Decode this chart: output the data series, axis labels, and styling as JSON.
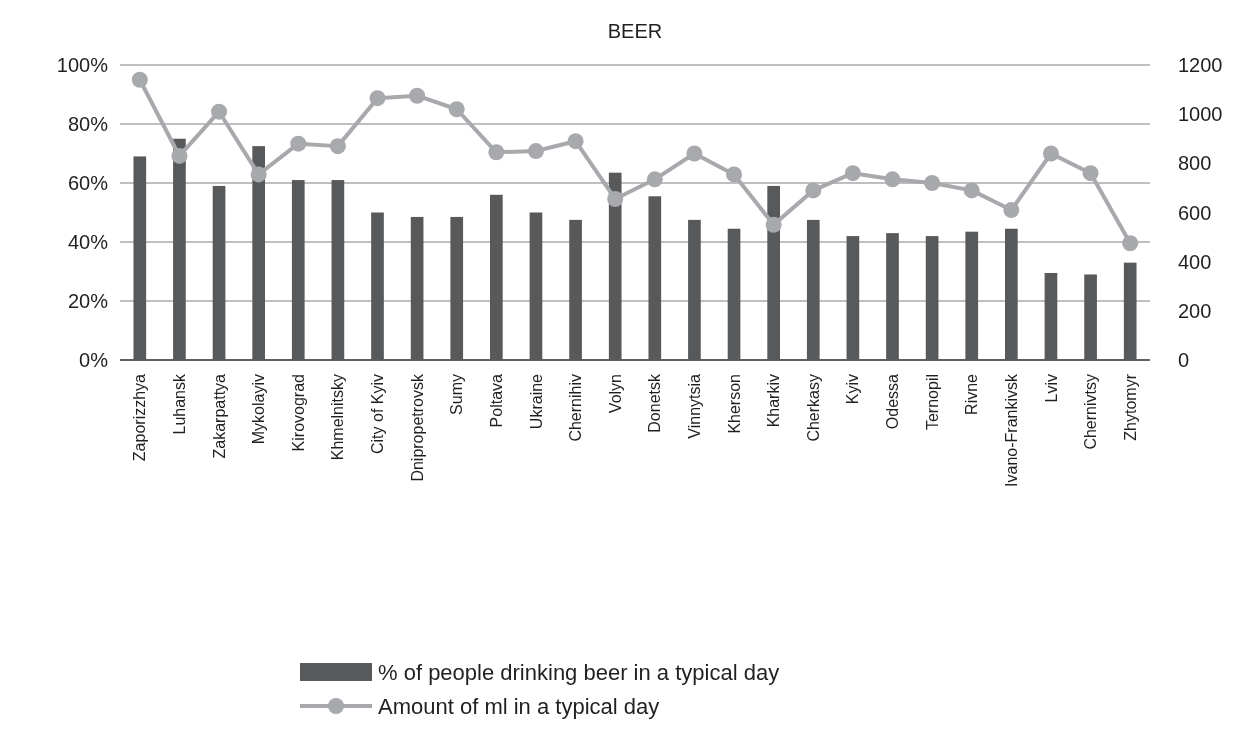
{
  "chart_data": {
    "type": "bar",
    "title": "BEER",
    "categories": [
      "Zaporizzhya",
      "Luhansk",
      "Zakarpattya",
      "Mykolayiv",
      "Kirovograd",
      "Khmelnitsky",
      "City of Kyiv",
      "Dnipropetrovsk",
      "Sumy",
      "Poltava",
      "Ukraine",
      "Chernihiv",
      "Volyn",
      "Donetsk",
      "Vinnytsia",
      "Kherson",
      "Kharkiv",
      "Cherkasy",
      "Kyiv",
      "Odessa",
      "Ternopil",
      "Rivne",
      "Ivano-Frankivsk",
      "Lviv",
      "Chernivtsy",
      "Zhytomyr"
    ],
    "series": [
      {
        "name": "% of people drinking beer in a typical day",
        "color": "#58595b",
        "values": [
          69,
          75,
          59,
          72.5,
          61,
          61,
          50,
          48.5,
          48.5,
          56,
          50,
          47.5,
          63.5,
          55.5,
          47.5,
          44.5,
          59,
          47.5,
          42,
          43,
          42,
          43.5,
          44.5,
          29.5,
          29,
          33
        ]
      },
      {
        "name": "Amount of ml in a typical day",
        "color": "#a7a9ac",
        "type": "line",
        "axis": "y2",
        "marker": "circle",
        "values": [
          1140,
          830,
          1010,
          755,
          880,
          870,
          1065,
          1075,
          1020,
          845,
          850,
          890,
          655,
          735,
          840,
          755,
          550,
          690,
          760,
          735,
          720,
          690,
          610,
          840,
          760,
          475
        ]
      }
    ],
    "ylim": [
      0,
      100
    ],
    "yticks": [
      {
        "value": 0,
        "label": "0%"
      },
      {
        "value": 20,
        "label": "20%"
      },
      {
        "value": 40,
        "label": "40%"
      },
      {
        "value": 60,
        "label": "60%"
      },
      {
        "value": 80,
        "label": "80%"
      },
      {
        "value": 100,
        "label": "100%"
      }
    ],
    "y2lim": [
      0,
      1200
    ],
    "y2ticks": [
      0,
      200,
      400,
      600,
      800,
      1000,
      1200
    ],
    "grid": "y",
    "legend": "bottom"
  }
}
